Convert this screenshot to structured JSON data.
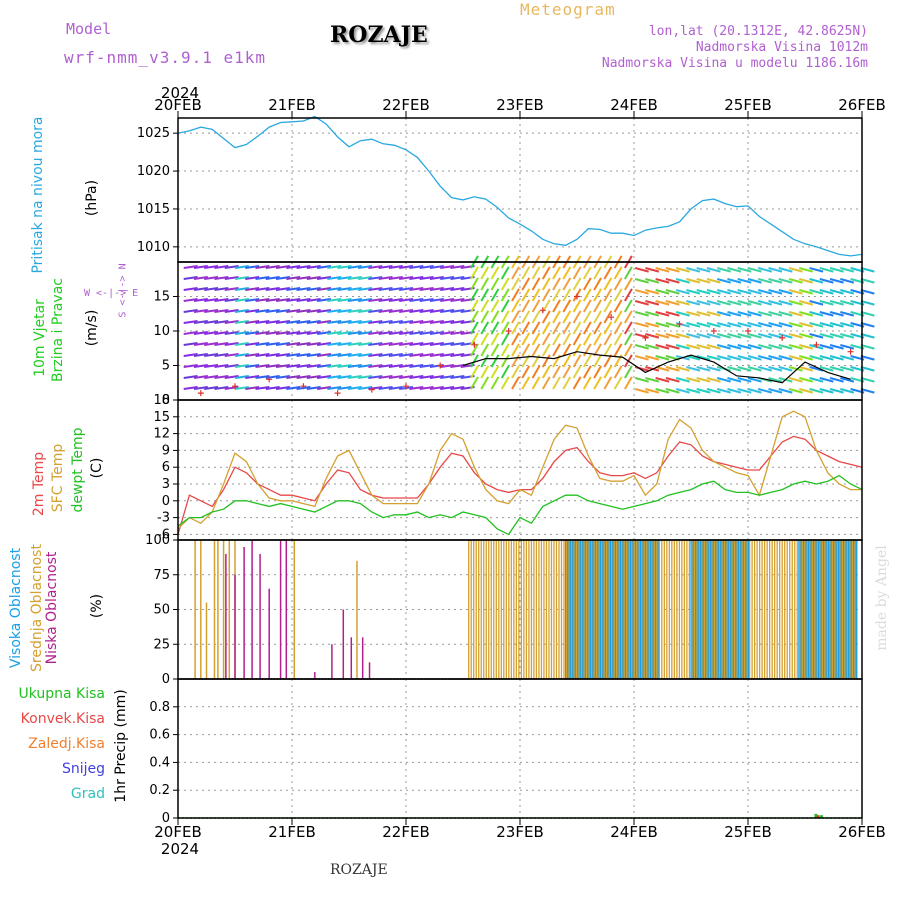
{
  "header": {
    "model_label": "Model",
    "model_name": "wrf-nmm_v3.9.1 e1km",
    "station": "ROZAJE",
    "meteogram": "Meteogram",
    "coords": "lon,lat (20.1312E, 42.8625N)",
    "altitude": "Nadmorska Visina 1012m",
    "model_altitude": "Nadmorska Visina u modelu 1186.16m",
    "footer_station": "ROZAJE",
    "credit": "made by Angel"
  },
  "colors": {
    "pressure": "#2aa8e0",
    "wind_label": "#22cc22",
    "temp2m": "#e84848",
    "sfc": "#d4a030",
    "dew": "#22c022",
    "high_cloud": "#1aa0e8",
    "mid_cloud": "#d4a030",
    "low_cloud": "#b0208c",
    "model_text": "#b060d0",
    "meteogram_text": "#e8b860"
  },
  "panels": {
    "pressure": {
      "label1": "Pritisak na nivou mora",
      "label2": "(hPa)"
    },
    "wind": {
      "label1": "10m Vjetar",
      "label2": "Brzina i Pravac",
      "label3": "(m/s)",
      "compass": "W <-|-> E",
      "compass_v": "S <-|-> N"
    },
    "temp": {
      "label1": "2m Temp",
      "label2": "SFC Temp",
      "label3": "dewpt Temp",
      "label4": "(C)"
    },
    "cloud": {
      "label1": "Visoka Oblacnost",
      "label2": "Srednja Oblacnost",
      "label3": "Niska Oblacnost",
      "label4": "(%)"
    },
    "precip": {
      "label1": "Ukupna Kisa",
      "label2": "Konvek.Kisa",
      "label3": "Zaledj.Kisa",
      "label4": "Snijeg",
      "label5": "Grad",
      "label6": "1hr Precip (mm)"
    }
  },
  "chart_data": [
    {
      "type": "line",
      "panel": "pressure",
      "x_categories": [
        "20FEB",
        "21FEB",
        "22FEB",
        "23FEB",
        "24FEB",
        "25FEB",
        "26FEB"
      ],
      "x_year": "2024",
      "ylim": [
        1008,
        1027
      ],
      "yticks": [
        1010,
        1015,
        1020,
        1025
      ],
      "grid": true,
      "series": [
        {
          "name": "Pritisak na nivou mora",
          "color": "#2aa8e0",
          "x": [
            0,
            0.1,
            0.2,
            0.3,
            0.4,
            0.5,
            0.6,
            0.7,
            0.8,
            0.9,
            1.0,
            1.1,
            1.2,
            1.3,
            1.4,
            1.5,
            1.6,
            1.7,
            1.8,
            1.9,
            2.0,
            2.1,
            2.2,
            2.3,
            2.4,
            2.5,
            2.6,
            2.7,
            2.8,
            2.9,
            3.0,
            3.1,
            3.2,
            3.3,
            3.4,
            3.5,
            3.6,
            3.7,
            3.8,
            3.9,
            4.0,
            4.1,
            4.2,
            4.3,
            4.4,
            4.5,
            4.6,
            4.7,
            4.8,
            4.9,
            5.0,
            5.1,
            5.2,
            5.3,
            5.4,
            5.5,
            5.6,
            5.7,
            5.8,
            5.9,
            6.0
          ],
          "y": [
            1025,
            1025.3,
            1025.8,
            1025.5,
            1024.3,
            1023.1,
            1023.5,
            1024.6,
            1025.8,
            1026.4,
            1026.5,
            1026.6,
            1027.2,
            1026.2,
            1024.5,
            1023.2,
            1024,
            1024.2,
            1023.6,
            1023.4,
            1022.8,
            1021.8,
            1020,
            1018,
            1016.5,
            1016.2,
            1016.6,
            1016.3,
            1015.2,
            1013.8,
            1013,
            1012.1,
            1011,
            1010.4,
            1010.2,
            1011,
            1012.4,
            1012.3,
            1011.8,
            1011.8,
            1011.5,
            1012.2,
            1012.5,
            1012.7,
            1013.3,
            1015,
            1016.1,
            1016.3,
            1015.7,
            1015.3,
            1015.4,
            1014,
            1013,
            1012,
            1011,
            1010.4,
            1010,
            1009.5,
            1009,
            1008.8,
            1009
          ]
        }
      ]
    },
    {
      "type": "scatter",
      "panel": "wind",
      "ylim": [
        0,
        20
      ],
      "yticks": [
        0,
        5,
        10,
        15
      ],
      "grid": true,
      "series": [
        {
          "name": "speed",
          "color": "#000000",
          "x": [
            2.5,
            2.7,
            2.9,
            3.1,
            3.3,
            3.5,
            3.7,
            3.9,
            4.1,
            4.3,
            4.5,
            4.7,
            4.9,
            5.1,
            5.3,
            5.5,
            5.7,
            5.9
          ],
          "y": [
            5,
            6,
            6,
            6.3,
            6,
            7,
            6.5,
            6.2,
            4,
            5.5,
            6.5,
            5.5,
            3.5,
            3.2,
            2.5,
            5.5,
            4,
            3
          ]
        },
        {
          "name": "gust",
          "color": "#e03030",
          "x": [
            0.2,
            0.5,
            0.8,
            1.1,
            1.4,
            1.7,
            2.0,
            2.3,
            2.6,
            2.9,
            3.2,
            3.5,
            3.8,
            4.1,
            4.4,
            4.7,
            5.0,
            5.3,
            5.6,
            5.9
          ],
          "y": [
            1,
            2,
            3,
            2,
            1,
            1.5,
            2,
            5,
            8,
            10,
            13,
            15,
            12,
            9,
            11,
            10,
            10,
            9,
            8,
            7
          ]
        }
      ]
    },
    {
      "type": "line",
      "panel": "temp",
      "ylim": [
        -7,
        18
      ],
      "yticks": [
        -6,
        -3,
        0,
        3,
        6,
        9,
        12,
        15,
        18
      ],
      "grid": true,
      "series": [
        {
          "name": "2m Temp",
          "color": "#e84848",
          "x": [
            0,
            0.1,
            0.2,
            0.3,
            0.4,
            0.5,
            0.6,
            0.7,
            0.8,
            0.9,
            1.0,
            1.1,
            1.2,
            1.3,
            1.4,
            1.5,
            1.6,
            1.7,
            1.8,
            1.9,
            2.0,
            2.1,
            2.2,
            2.3,
            2.4,
            2.5,
            2.6,
            2.7,
            2.8,
            2.9,
            3.0,
            3.1,
            3.2,
            3.3,
            3.4,
            3.5,
            3.6,
            3.7,
            3.8,
            3.9,
            4.0,
            4.1,
            4.2,
            4.3,
            4.4,
            4.5,
            4.6,
            4.7,
            4.8,
            4.9,
            5.0,
            5.1,
            5.2,
            5.3,
            5.4,
            5.5,
            5.6,
            5.7,
            5.8,
            5.9,
            6.0
          ],
          "y": [
            -6,
            1,
            0,
            -1,
            2,
            6,
            5,
            3,
            2,
            1,
            1,
            0.5,
            0,
            3,
            5.5,
            5,
            2,
            1,
            0.5,
            0.5,
            0.5,
            0.5,
            3,
            6,
            8.5,
            8,
            5,
            3,
            2,
            1.5,
            2,
            2,
            4,
            7,
            9,
            9.5,
            7,
            5,
            4.5,
            4.5,
            5,
            4,
            5,
            8,
            10.5,
            10,
            8,
            7,
            6.5,
            6,
            5.5,
            5.5,
            8,
            10.5,
            11.5,
            11,
            9,
            8,
            7,
            6.5,
            6
          ]
        },
        {
          "name": "SFC Temp",
          "color": "#d4a030",
          "x": [
            0,
            0.1,
            0.2,
            0.3,
            0.4,
            0.5,
            0.6,
            0.7,
            0.8,
            0.9,
            1.0,
            1.1,
            1.2,
            1.3,
            1.4,
            1.5,
            1.6,
            1.7,
            1.8,
            1.9,
            2.0,
            2.1,
            2.2,
            2.3,
            2.4,
            2.5,
            2.6,
            2.7,
            2.8,
            2.9,
            3.0,
            3.1,
            3.2,
            3.3,
            3.4,
            3.5,
            3.6,
            3.7,
            3.8,
            3.9,
            4.0,
            4.1,
            4.2,
            4.3,
            4.4,
            4.5,
            4.6,
            4.7,
            4.8,
            4.9,
            5.0,
            5.1,
            5.2,
            5.3,
            5.4,
            5.5,
            5.6,
            5.7,
            5.8,
            5.9,
            6.0
          ],
          "y": [
            -5,
            -3,
            -4,
            -2,
            3,
            8.5,
            7,
            3,
            0.5,
            0,
            0,
            -0.5,
            -1,
            4,
            8,
            9,
            5,
            1,
            -0.5,
            -0.5,
            -0.5,
            -0.5,
            3,
            9,
            12,
            11,
            6,
            2,
            0,
            -0.5,
            2,
            1,
            6,
            11,
            13.5,
            13,
            8,
            4,
            3.5,
            3.5,
            4.5,
            1,
            3,
            11,
            14.5,
            13,
            9,
            7,
            6,
            5,
            4.5,
            1,
            8,
            15,
            16,
            15,
            9,
            5,
            3,
            2,
            2
          ]
        },
        {
          "name": "dewpt Temp",
          "color": "#22c022",
          "x": [
            0,
            0.1,
            0.2,
            0.3,
            0.4,
            0.5,
            0.6,
            0.7,
            0.8,
            0.9,
            1.0,
            1.1,
            1.2,
            1.3,
            1.4,
            1.5,
            1.6,
            1.7,
            1.8,
            1.9,
            2.0,
            2.1,
            2.2,
            2.3,
            2.4,
            2.5,
            2.6,
            2.7,
            2.8,
            2.9,
            3.0,
            3.1,
            3.2,
            3.3,
            3.4,
            3.5,
            3.6,
            3.7,
            3.8,
            3.9,
            4.0,
            4.1,
            4.2,
            4.3,
            4.4,
            4.5,
            4.6,
            4.7,
            4.8,
            4.9,
            5.0,
            5.1,
            5.2,
            5.3,
            5.4,
            5.5,
            5.6,
            5.7,
            5.8,
            5.9,
            6.0
          ],
          "y": [
            -4.5,
            -3,
            -3,
            -2,
            -1.5,
            0,
            0,
            -0.5,
            -1,
            -0.5,
            -1,
            -1.5,
            -2,
            -1,
            0,
            0,
            -0.5,
            -2,
            -3,
            -2.5,
            -2.5,
            -2,
            -3,
            -2.5,
            -3,
            -2,
            -2.5,
            -3,
            -5,
            -6,
            -3,
            -4,
            -1,
            0,
            1,
            1,
            0,
            -0.5,
            -1,
            -1.5,
            -1,
            -0.5,
            0,
            1,
            1.5,
            2,
            3,
            3.5,
            2,
            1.5,
            1.5,
            1,
            1.5,
            2,
            3,
            3.5,
            3,
            3.5,
            4.5,
            3,
            2
          ]
        }
      ]
    },
    {
      "type": "bar",
      "panel": "cloud",
      "ylim": [
        0,
        100
      ],
      "yticks": [
        0,
        25,
        50,
        75,
        100
      ],
      "grid": true,
      "series": [
        {
          "name": "Srednja Oblacnost",
          "color": "#d4a030",
          "x": [
            0.15,
            0.2,
            0.25,
            0.32,
            0.35,
            0.4,
            0.45,
            0.5,
            1.02,
            1.57
          ],
          "values": [
            100,
            100,
            55,
            100,
            100,
            100,
            100,
            100,
            100,
            85
          ]
        },
        {
          "name": "Niska Oblacnost",
          "color": "#b0208c",
          "x": [
            0.42,
            0.5,
            0.58,
            0.65,
            0.72,
            0.8,
            0.9,
            0.95,
            1.2,
            1.35,
            1.45,
            1.52,
            1.62,
            1.68
          ],
          "values": [
            90,
            75,
            95,
            100,
            90,
            65,
            100,
            100,
            5,
            25,
            50,
            30,
            30,
            12
          ]
        }
      ],
      "dense_region": {
        "from": 2.55,
        "to": 5.95,
        "high": 100,
        "mid": 100
      }
    },
    {
      "type": "bar",
      "panel": "precip",
      "ylim": [
        0,
        1
      ],
      "yticks": [
        0,
        0.2,
        0.4,
        0.6,
        0.8
      ],
      "grid": true,
      "series": [
        {
          "name": "Ukupna Kisa",
          "color": "#22c022",
          "x": [
            5.6,
            5.65
          ],
          "values": [
            0.03,
            0.02
          ]
        },
        {
          "name": "Konvek.Kisa",
          "color": "#e03030",
          "x": [
            5.62
          ],
          "values": [
            0.02
          ]
        }
      ]
    }
  ]
}
